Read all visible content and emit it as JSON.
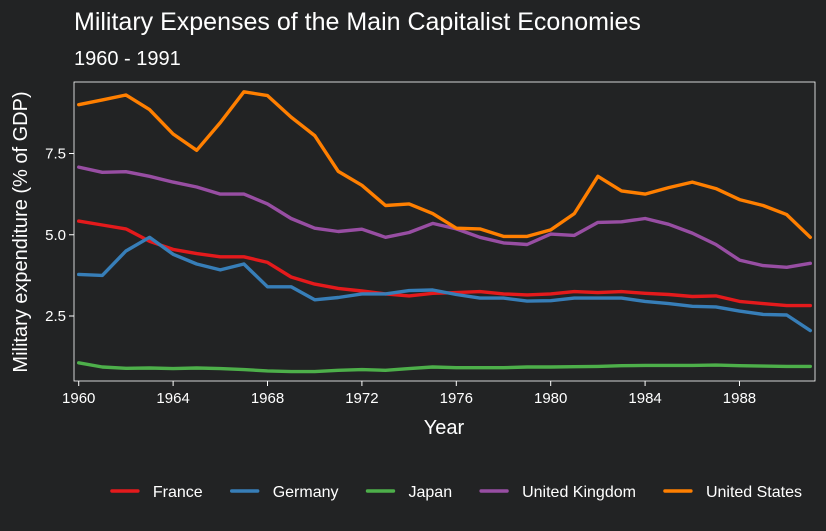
{
  "chart_data": {
    "type": "line",
    "title": "Military Expenses of the Main Capitalist Economies",
    "subtitle": "1960 - 1991",
    "xlabel": "Year",
    "ylabel": "Military expenditure (% of GDP)",
    "xlim": [
      1959.8,
      1991.2
    ],
    "ylim": [
      0.5,
      9.7
    ],
    "x_ticks": [
      1960,
      1964,
      1968,
      1972,
      1976,
      1980,
      1984,
      1988
    ],
    "x_tick_labels": [
      "1960",
      "1964",
      "1968",
      "1972",
      "1976",
      "1980",
      "1984",
      "1988"
    ],
    "y_ticks": [
      2.5,
      5.0,
      7.5
    ],
    "y_tick_labels": [
      "2.5",
      "5.0",
      "7.5"
    ],
    "grid": false,
    "legend_position": "bottom",
    "x": [
      1960,
      1961,
      1962,
      1963,
      1964,
      1965,
      1966,
      1967,
      1968,
      1969,
      1970,
      1971,
      1972,
      1973,
      1974,
      1975,
      1976,
      1977,
      1978,
      1979,
      1980,
      1981,
      1982,
      1983,
      1984,
      1985,
      1986,
      1987,
      1988,
      1989,
      1990,
      1991
    ],
    "series": [
      {
        "name": "France",
        "color": "#e41a1c",
        "values": [
          5.42,
          5.3,
          5.18,
          4.8,
          4.55,
          4.42,
          4.32,
          4.32,
          4.15,
          3.7,
          3.48,
          3.35,
          3.27,
          3.18,
          3.12,
          3.2,
          3.22,
          3.25,
          3.18,
          3.15,
          3.18,
          3.25,
          3.22,
          3.25,
          3.2,
          3.16,
          3.1,
          3.12,
          2.95,
          2.88,
          2.82,
          2.82
        ]
      },
      {
        "name": "Germany",
        "color": "#377eb8",
        "values": [
          3.78,
          3.75,
          4.5,
          4.92,
          4.4,
          4.1,
          3.92,
          4.1,
          3.4,
          3.4,
          3.0,
          3.07,
          3.18,
          3.18,
          3.28,
          3.3,
          3.16,
          3.05,
          3.05,
          2.96,
          2.97,
          3.05,
          3.05,
          3.05,
          2.95,
          2.88,
          2.8,
          2.78,
          2.65,
          2.55,
          2.53,
          2.05
        ]
      },
      {
        "name": "Japan",
        "color": "#4daf4a",
        "values": [
          1.06,
          0.93,
          0.89,
          0.9,
          0.88,
          0.9,
          0.88,
          0.85,
          0.81,
          0.79,
          0.79,
          0.83,
          0.85,
          0.83,
          0.88,
          0.93,
          0.91,
          0.91,
          0.91,
          0.93,
          0.93,
          0.94,
          0.95,
          0.97,
          0.98,
          0.98,
          0.98,
          0.99,
          0.97,
          0.96,
          0.95,
          0.95
        ]
      },
      {
        "name": "United Kingdom",
        "color": "#984ea3",
        "values": [
          7.08,
          6.92,
          6.94,
          6.8,
          6.62,
          6.47,
          6.25,
          6.25,
          5.95,
          5.5,
          5.2,
          5.1,
          5.17,
          4.92,
          5.07,
          5.35,
          5.18,
          4.92,
          4.75,
          4.7,
          5.02,
          4.98,
          5.38,
          5.4,
          5.5,
          5.32,
          5.05,
          4.7,
          4.22,
          4.05,
          4.0,
          4.12
        ]
      },
      {
        "name": "United States",
        "color": "#ff7f00",
        "values": [
          9.0,
          9.15,
          9.3,
          8.85,
          8.1,
          7.6,
          8.45,
          9.4,
          9.28,
          8.62,
          8.05,
          6.95,
          6.52,
          5.9,
          5.95,
          5.65,
          5.2,
          5.18,
          4.95,
          4.95,
          5.15,
          5.65,
          6.8,
          6.35,
          6.25,
          6.45,
          6.62,
          6.42,
          6.08,
          5.9,
          5.62,
          4.92
        ]
      }
    ]
  }
}
